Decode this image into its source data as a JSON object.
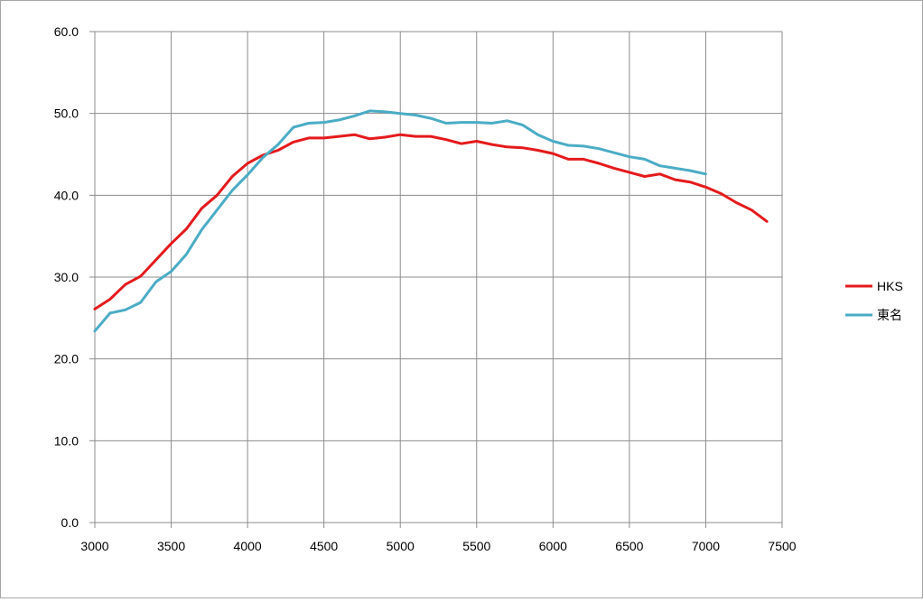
{
  "chart_data": {
    "type": "line",
    "xlim": [
      3000,
      7500
    ],
    "ylim": [
      0,
      60
    ],
    "x_ticks": [
      "3000",
      "3500",
      "4000",
      "4500",
      "5000",
      "5500",
      "6000",
      "6500",
      "7000",
      "7500"
    ],
    "y_ticks": [
      "0.0",
      "10.0",
      "20.0",
      "30.0",
      "40.0",
      "50.0",
      "60.0"
    ],
    "grid": true,
    "legend_position": "right",
    "title": "",
    "xlabel": "",
    "ylabel": "",
    "series": [
      {
        "name": "HKS",
        "color": "#e41a1c",
        "points": [
          [
            3000,
            26.1
          ],
          [
            3100,
            27.3
          ],
          [
            3200,
            29.1
          ],
          [
            3300,
            30.1
          ],
          [
            3400,
            32.1
          ],
          [
            3500,
            34.1
          ],
          [
            3600,
            35.9
          ],
          [
            3700,
            38.4
          ],
          [
            3800,
            40.0
          ],
          [
            3900,
            42.3
          ],
          [
            4000,
            43.9
          ],
          [
            4100,
            44.9
          ],
          [
            4200,
            45.5
          ],
          [
            4300,
            46.5
          ],
          [
            4400,
            47.0
          ],
          [
            4500,
            47.0
          ],
          [
            4600,
            47.2
          ],
          [
            4700,
            47.4
          ],
          [
            4800,
            46.9
          ],
          [
            4900,
            47.1
          ],
          [
            5000,
            47.4
          ],
          [
            5100,
            47.2
          ],
          [
            5200,
            47.2
          ],
          [
            5300,
            46.8
          ],
          [
            5400,
            46.3
          ],
          [
            5500,
            46.6
          ],
          [
            5600,
            46.2
          ],
          [
            5700,
            45.9
          ],
          [
            5800,
            45.8
          ],
          [
            5900,
            45.5
          ],
          [
            6000,
            45.1
          ],
          [
            6100,
            44.4
          ],
          [
            6200,
            44.4
          ],
          [
            6300,
            43.9
          ],
          [
            6400,
            43.3
          ],
          [
            6500,
            42.8
          ],
          [
            6600,
            42.3
          ],
          [
            6700,
            42.6
          ],
          [
            6800,
            41.9
          ],
          [
            6900,
            41.6
          ],
          [
            7000,
            41.0
          ],
          [
            7100,
            40.2
          ],
          [
            7200,
            39.1
          ],
          [
            7300,
            38.2
          ],
          [
            7400,
            36.8
          ]
        ]
      },
      {
        "name": "東名",
        "color": "#4aacc5",
        "points": [
          [
            3000,
            23.4
          ],
          [
            3100,
            25.6
          ],
          [
            3200,
            26.0
          ],
          [
            3300,
            26.9
          ],
          [
            3400,
            29.4
          ],
          [
            3500,
            30.7
          ],
          [
            3600,
            32.8
          ],
          [
            3700,
            35.8
          ],
          [
            3800,
            38.2
          ],
          [
            3900,
            40.6
          ],
          [
            4000,
            42.5
          ],
          [
            4100,
            44.6
          ],
          [
            4200,
            46.2
          ],
          [
            4300,
            48.3
          ],
          [
            4400,
            48.8
          ],
          [
            4500,
            48.9
          ],
          [
            4600,
            49.2
          ],
          [
            4700,
            49.7
          ],
          [
            4800,
            50.3
          ],
          [
            4900,
            50.2
          ],
          [
            5000,
            50.0
          ],
          [
            5100,
            49.8
          ],
          [
            5200,
            49.4
          ],
          [
            5300,
            48.8
          ],
          [
            5400,
            48.9
          ],
          [
            5500,
            48.9
          ],
          [
            5600,
            48.8
          ],
          [
            5700,
            49.1
          ],
          [
            5800,
            48.6
          ],
          [
            5900,
            47.4
          ],
          [
            6000,
            46.6
          ],
          [
            6100,
            46.1
          ],
          [
            6200,
            46.0
          ],
          [
            6300,
            45.7
          ],
          [
            6400,
            45.2
          ],
          [
            6500,
            44.7
          ],
          [
            6600,
            44.4
          ],
          [
            6700,
            43.6
          ],
          [
            6800,
            43.3
          ],
          [
            6900,
            43.0
          ],
          [
            7000,
            42.6
          ]
        ]
      }
    ]
  }
}
